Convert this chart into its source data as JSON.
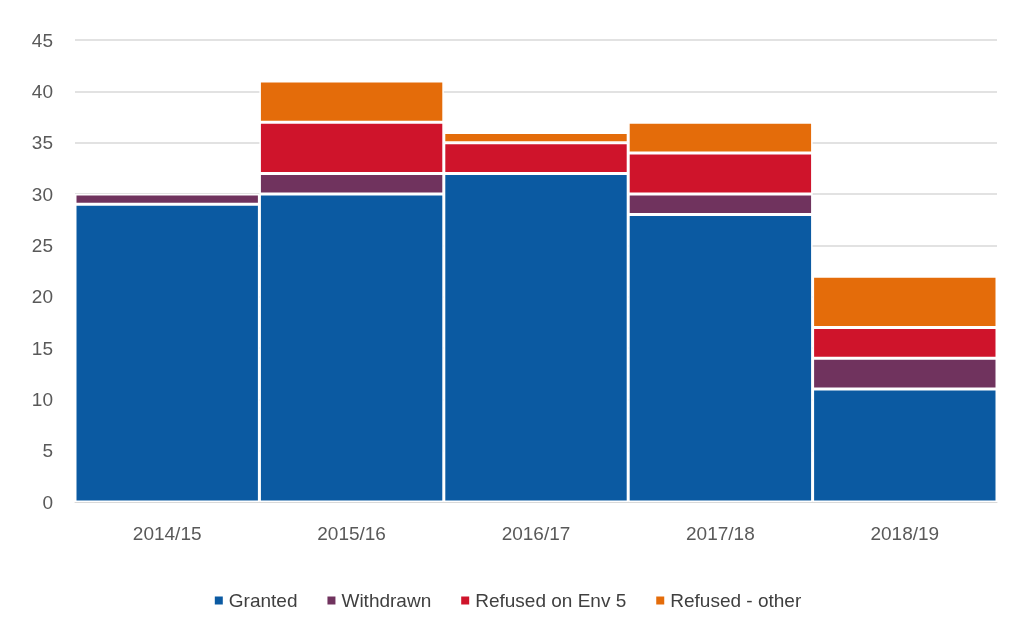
{
  "chart_data": {
    "type": "bar",
    "stacked": true,
    "categories": [
      "2014/15",
      "2015/16",
      "2016/17",
      "2017/18",
      "2018/19"
    ],
    "series": [
      {
        "name": "Granted",
        "color": "#0b5aa2",
        "values": [
          29,
          30,
          32,
          28,
          11
        ]
      },
      {
        "name": "Withdrawn",
        "color": "#70335e",
        "values": [
          1,
          2,
          0,
          2,
          3
        ]
      },
      {
        "name": "Refused on Env 5",
        "color": "#cf142b",
        "values": [
          0,
          5,
          3,
          4,
          3
        ]
      },
      {
        "name": "Refused - other",
        "color": "#e46c0a",
        "values": [
          0,
          4,
          1,
          3,
          5
        ]
      }
    ],
    "ylim": [
      0,
      45
    ],
    "yticks": [
      0,
      5,
      10,
      15,
      20,
      25,
      30,
      35,
      40,
      45
    ],
    "grid": "y",
    "legend": "bottom"
  }
}
